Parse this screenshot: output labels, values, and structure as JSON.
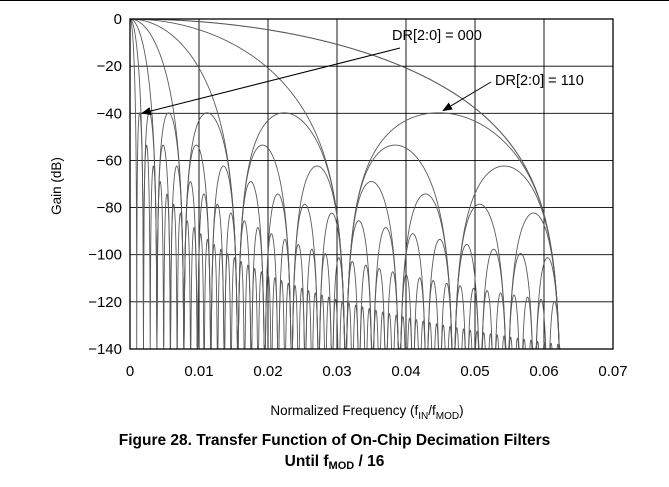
{
  "chart_data": {
    "type": "line",
    "title": "",
    "xlabel": "Normalized Frequency (f",
    "xlabel_sub1": "IN",
    "xlabel_mid": "/f",
    "xlabel_sub2": "MOD",
    "xlabel_end": ")",
    "ylabel": "Gain (dB)",
    "xlim": [
      0,
      0.07
    ],
    "ylim": [
      -140,
      0
    ],
    "xticks": [
      "0",
      "0.01",
      "0.02",
      "0.03",
      "0.04",
      "0.05",
      "0.06",
      "0.07"
    ],
    "yticks": [
      "0",
      "−20",
      "−40",
      "−60",
      "−80",
      "−100",
      "−120",
      "−140"
    ],
    "grid": true,
    "filter_family": {
      "description_of_series": "DR[2:0] = 000 through DR[2:0] = 110",
      "first_null_frequencies": [
        0.0625,
        0.03125,
        0.015625,
        0.0078125,
        0.00390625,
        0.001953125,
        0.0009765625
      ],
      "passband_end": 0.0625,
      "floor_db": -140
    },
    "annotations": [
      {
        "text": "DR[2:0] = 000",
        "points_to": {
          "x": 0.001,
          "y": -40
        }
      },
      {
        "text": "DR[2:0] = 110",
        "points_to": {
          "x": 0.0445,
          "y": -38
        }
      }
    ]
  },
  "caption": {
    "line1": "Figure 28. Transfer Function of On-Chip Decimation Filters",
    "line2_prefix": "Until f",
    "line2_sub": "MOD",
    "line2_suffix": " / 16"
  },
  "colors": {
    "curve": "#5a5a5a",
    "grid": "#000000",
    "text": "#000000"
  }
}
